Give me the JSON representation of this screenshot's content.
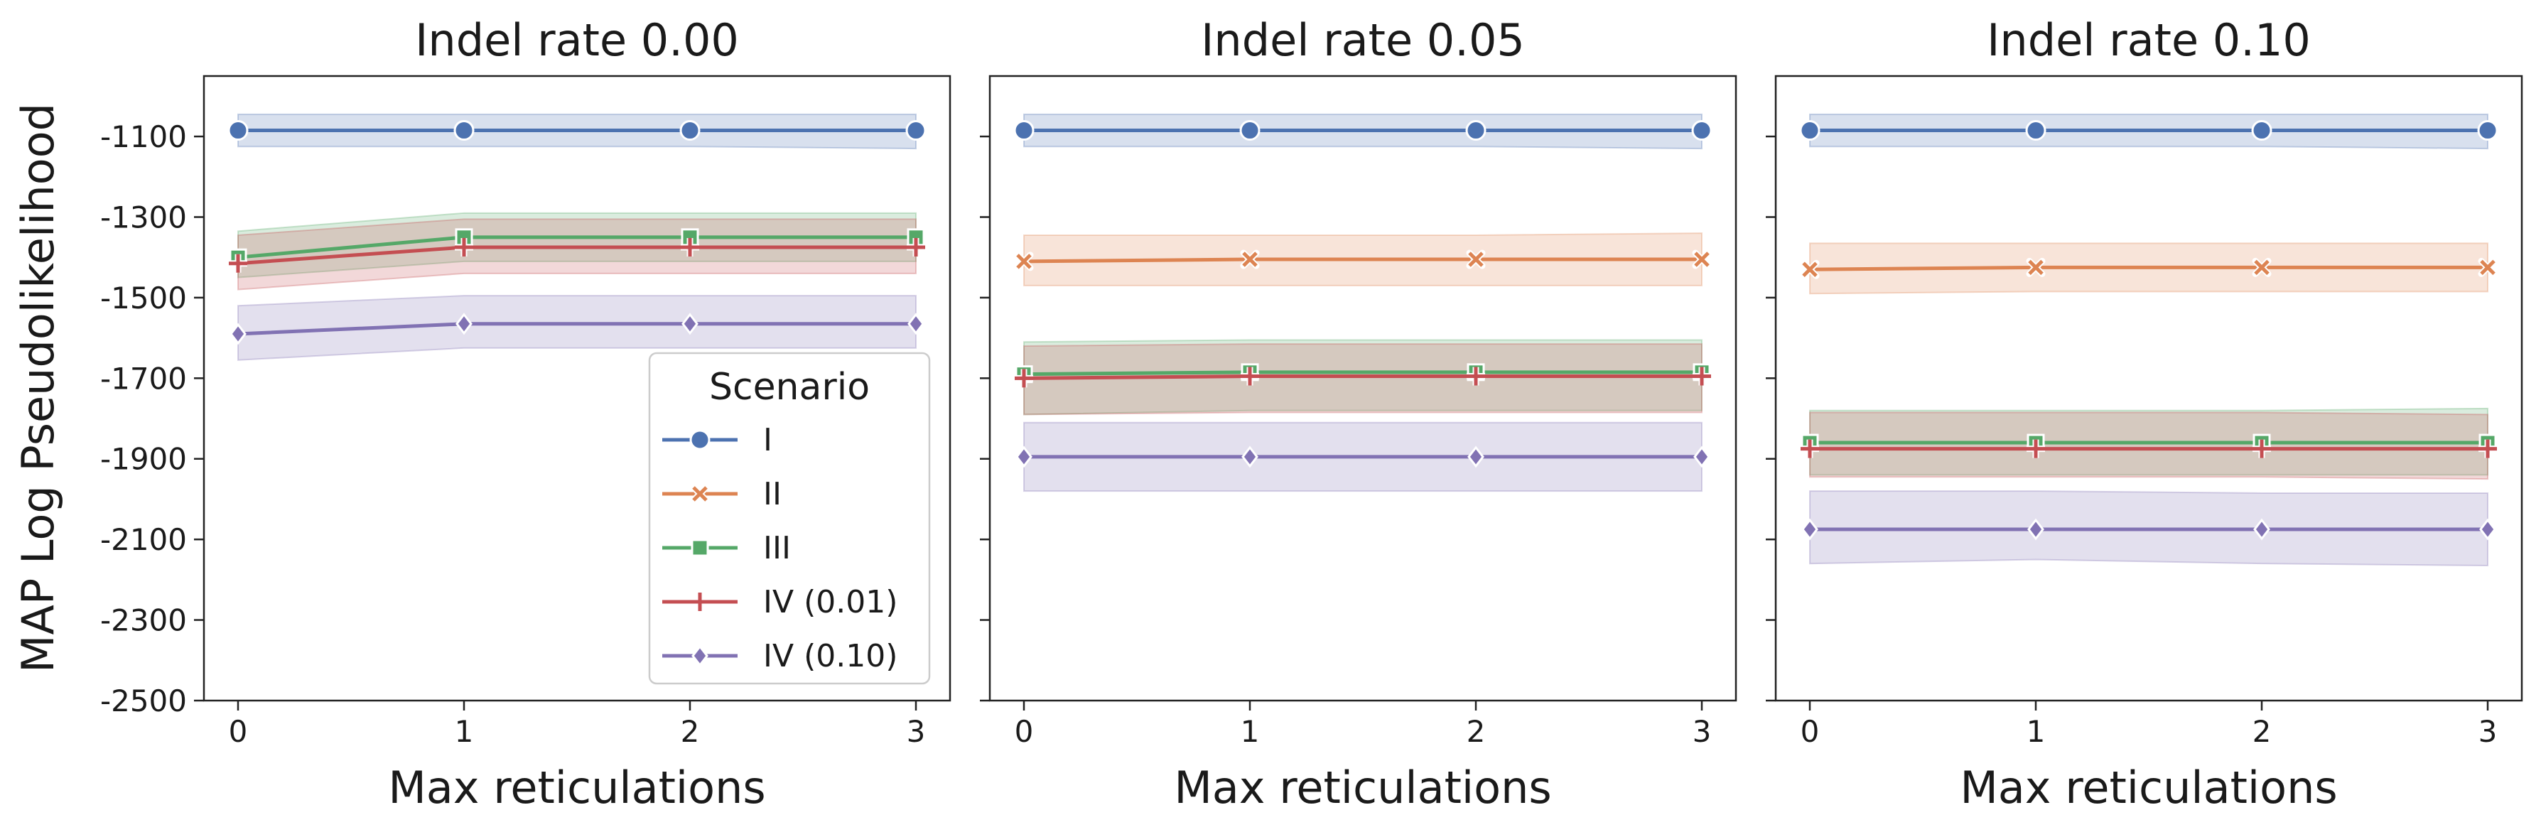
{
  "chart_data": {
    "type": "line",
    "ylabel": "MAP Log Pseudolikelihood",
    "xlabel": "Max reticulations",
    "x": [
      0,
      1,
      2,
      3
    ],
    "x_ticks": [
      "0",
      "1",
      "2",
      "3"
    ],
    "ylim": [
      -2500,
      -950
    ],
    "y_ticks": [
      -1100,
      -1300,
      -1500,
      -1700,
      -1900,
      -2100,
      -2300,
      -2500
    ],
    "y_tick_labels": [
      "-1100",
      "-1300",
      "-1500",
      "-1700",
      "-1900",
      "-2100",
      "-2300",
      "-2500"
    ],
    "shared_y": true,
    "grid": false,
    "legend": {
      "title": "Scenario",
      "placement": "lower-right of first panel",
      "entries": [
        "I",
        "II",
        "III",
        "IV (0.01)",
        "IV (0.10)"
      ]
    },
    "colors": {
      "I": "#4c72b0",
      "II": "#dd8452",
      "III": "#55a868",
      "IV (0.01)": "#c44e52",
      "IV (0.10)": "#8172b3"
    },
    "markers": {
      "I": "circle",
      "II": "x",
      "III": "square",
      "IV (0.01)": "plus",
      "IV (0.10)": "diamond"
    },
    "panels": [
      {
        "title": "Indel rate 0.00",
        "series": [
          {
            "name": "I",
            "values": [
              -1085,
              -1085,
              -1085,
              -1085
            ],
            "lower": [
              -1125,
              -1125,
              -1125,
              -1130
            ],
            "upper": [
              -1045,
              -1045,
              -1045,
              -1045
            ]
          },
          {
            "name": "III",
            "values": [
              -1400,
              -1350,
              -1350,
              -1350
            ],
            "lower": [
              -1450,
              -1410,
              -1410,
              -1410
            ],
            "upper": [
              -1335,
              -1290,
              -1290,
              -1290
            ]
          },
          {
            "name": "IV (0.01)",
            "values": [
              -1415,
              -1375,
              -1375,
              -1375
            ],
            "lower": [
              -1480,
              -1440,
              -1440,
              -1440
            ],
            "upper": [
              -1345,
              -1305,
              -1305,
              -1305
            ]
          },
          {
            "name": "IV (0.10)",
            "values": [
              -1590,
              -1565,
              -1565,
              -1565
            ],
            "lower": [
              -1655,
              -1625,
              -1625,
              -1625
            ],
            "upper": [
              -1520,
              -1495,
              -1495,
              -1495
            ]
          }
        ]
      },
      {
        "title": "Indel rate 0.05",
        "series": [
          {
            "name": "I",
            "values": [
              -1085,
              -1085,
              -1085,
              -1085
            ],
            "lower": [
              -1125,
              -1125,
              -1125,
              -1130
            ],
            "upper": [
              -1045,
              -1045,
              -1045,
              -1045
            ]
          },
          {
            "name": "II",
            "values": [
              -1410,
              -1405,
              -1405,
              -1405
            ],
            "lower": [
              -1470,
              -1470,
              -1470,
              -1470
            ],
            "upper": [
              -1345,
              -1345,
              -1345,
              -1340
            ]
          },
          {
            "name": "III",
            "values": [
              -1690,
              -1685,
              -1685,
              -1685
            ],
            "lower": [
              -1790,
              -1780,
              -1780,
              -1780
            ],
            "upper": [
              -1610,
              -1605,
              -1605,
              -1605
            ]
          },
          {
            "name": "IV (0.01)",
            "values": [
              -1700,
              -1695,
              -1695,
              -1695
            ],
            "lower": [
              -1790,
              -1785,
              -1785,
              -1785
            ],
            "upper": [
              -1620,
              -1615,
              -1615,
              -1615
            ]
          },
          {
            "name": "IV (0.10)",
            "values": [
              -1895,
              -1895,
              -1895,
              -1895
            ],
            "lower": [
              -1980,
              -1980,
              -1980,
              -1980
            ],
            "upper": [
              -1810,
              -1810,
              -1810,
              -1810
            ]
          }
        ]
      },
      {
        "title": "Indel rate 0.10",
        "series": [
          {
            "name": "I",
            "values": [
              -1085,
              -1085,
              -1085,
              -1085
            ],
            "lower": [
              -1125,
              -1125,
              -1125,
              -1130
            ],
            "upper": [
              -1045,
              -1045,
              -1045,
              -1045
            ]
          },
          {
            "name": "II",
            "values": [
              -1430,
              -1425,
              -1425,
              -1425
            ],
            "lower": [
              -1490,
              -1485,
              -1485,
              -1485
            ],
            "upper": [
              -1365,
              -1365,
              -1365,
              -1365
            ]
          },
          {
            "name": "III",
            "values": [
              -1860,
              -1860,
              -1860,
              -1860
            ],
            "lower": [
              -1940,
              -1940,
              -1940,
              -1940
            ],
            "upper": [
              -1780,
              -1780,
              -1780,
              -1775
            ]
          },
          {
            "name": "IV (0.01)",
            "values": [
              -1875,
              -1875,
              -1875,
              -1875
            ],
            "lower": [
              -1945,
              -1945,
              -1945,
              -1950
            ],
            "upper": [
              -1785,
              -1785,
              -1785,
              -1790
            ]
          },
          {
            "name": "IV (0.10)",
            "values": [
              -2075,
              -2075,
              -2075,
              -2075
            ],
            "lower": [
              -2160,
              -2150,
              -2160,
              -2165
            ],
            "upper": [
              -1980,
              -1980,
              -1985,
              -1985
            ]
          }
        ]
      }
    ]
  }
}
